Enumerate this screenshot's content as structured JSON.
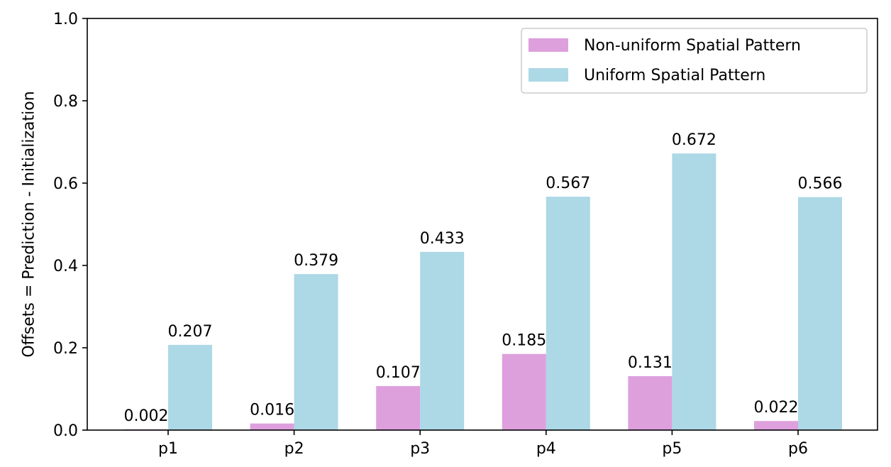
{
  "chart_data": {
    "type": "bar",
    "title": "",
    "xlabel": "",
    "ylabel": "Offsets = Prediction - Initialization",
    "ylim": [
      0,
      1.0
    ],
    "yticks": [
      "0.0",
      "0.2",
      "0.4",
      "0.6",
      "0.8",
      "1.0"
    ],
    "categories": [
      "p1",
      "p2",
      "p3",
      "p4",
      "p5",
      "p6"
    ],
    "series": [
      {
        "name": "Non-uniform Spatial Pattern",
        "color": "#dda0dd",
        "values": [
          0.002,
          0.016,
          0.107,
          0.185,
          0.131,
          0.022
        ],
        "labels": [
          "0.002",
          "0.016",
          "0.107",
          "0.185",
          "0.131",
          "0.022"
        ]
      },
      {
        "name": "Uniform Spatial Pattern",
        "color": "#add8e6",
        "values": [
          0.207,
          0.379,
          0.433,
          0.567,
          0.672,
          0.566
        ],
        "labels": [
          "0.207",
          "0.379",
          "0.433",
          "0.567",
          "0.672",
          "0.566"
        ]
      }
    ],
    "grid": false,
    "legend_position": "top-right"
  }
}
